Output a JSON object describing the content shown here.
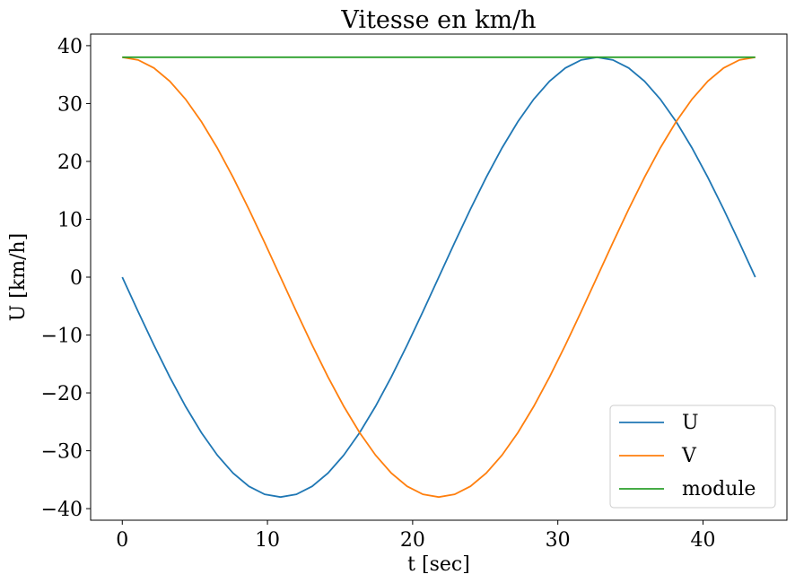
{
  "chart_data": {
    "type": "line",
    "title": "Vitesse  en km/h",
    "xlabel": "t [sec]",
    "ylabel": "U [km/h]",
    "xlim": [
      -2.18,
      45.78
    ],
    "ylim": [
      -42,
      42
    ],
    "xticks": [
      0,
      10,
      20,
      30,
      40
    ],
    "xtick_labels": [
      "0",
      "10",
      "20",
      "30",
      "40"
    ],
    "yticks": [
      -40,
      -30,
      -20,
      -10,
      0,
      10,
      20,
      30,
      40
    ],
    "ytick_labels": [
      "−40",
      "−30",
      "−20",
      "−10",
      "0",
      "10",
      "20",
      "30",
      "40"
    ],
    "grid": false,
    "legend_position": "bottom-right",
    "x": [
      0,
      1.09,
      2.18,
      3.27,
      4.36,
      5.45,
      6.54,
      7.63,
      8.72,
      9.81,
      10.9,
      11.99,
      13.08,
      14.17,
      15.26,
      16.35,
      17.44,
      18.53,
      19.62,
      20.71,
      21.8,
      22.89,
      23.98,
      25.07,
      26.16,
      27.25,
      28.34,
      29.43,
      30.52,
      31.61,
      32.7,
      33.79,
      34.88,
      35.97,
      37.06,
      38.15,
      39.24,
      40.33,
      41.42,
      42.51,
      43.6
    ],
    "series": [
      {
        "name": "U",
        "color": "#1f77b4",
        "values": [
          0,
          -5.94,
          -11.74,
          -17.25,
          -22.34,
          -26.87,
          -30.74,
          -33.86,
          -36.14,
          -37.53,
          -38,
          -37.53,
          -36.14,
          -33.86,
          -30.74,
          -26.87,
          -22.34,
          -17.25,
          -11.74,
          -5.94,
          0,
          5.94,
          11.74,
          17.25,
          22.34,
          26.87,
          30.74,
          33.86,
          36.14,
          37.53,
          38,
          37.53,
          36.14,
          33.86,
          30.74,
          26.87,
          22.34,
          17.25,
          11.74,
          5.94,
          0
        ]
      },
      {
        "name": "V",
        "color": "#ff7f0e",
        "values": [
          38,
          37.53,
          36.14,
          33.86,
          30.74,
          26.87,
          22.34,
          17.25,
          11.74,
          5.94,
          0,
          -5.94,
          -11.74,
          -17.25,
          -22.34,
          -26.87,
          -30.74,
          -33.86,
          -36.14,
          -37.53,
          -38,
          -37.53,
          -36.14,
          -33.86,
          -30.74,
          -26.87,
          -22.34,
          -17.25,
          -11.74,
          -5.94,
          0,
          5.94,
          11.74,
          17.25,
          22.34,
          26.87,
          30.74,
          33.86,
          36.14,
          37.53,
          38
        ]
      },
      {
        "name": "module",
        "color": "#2ca02c",
        "values": [
          38,
          38,
          38,
          38,
          38,
          38,
          38,
          38,
          38,
          38,
          38,
          38,
          38,
          38,
          38,
          38,
          38,
          38,
          38,
          38,
          38,
          38,
          38,
          38,
          38,
          38,
          38,
          38,
          38,
          38,
          38,
          38,
          38,
          38,
          38,
          38,
          38,
          38,
          38,
          38,
          38
        ]
      }
    ]
  }
}
